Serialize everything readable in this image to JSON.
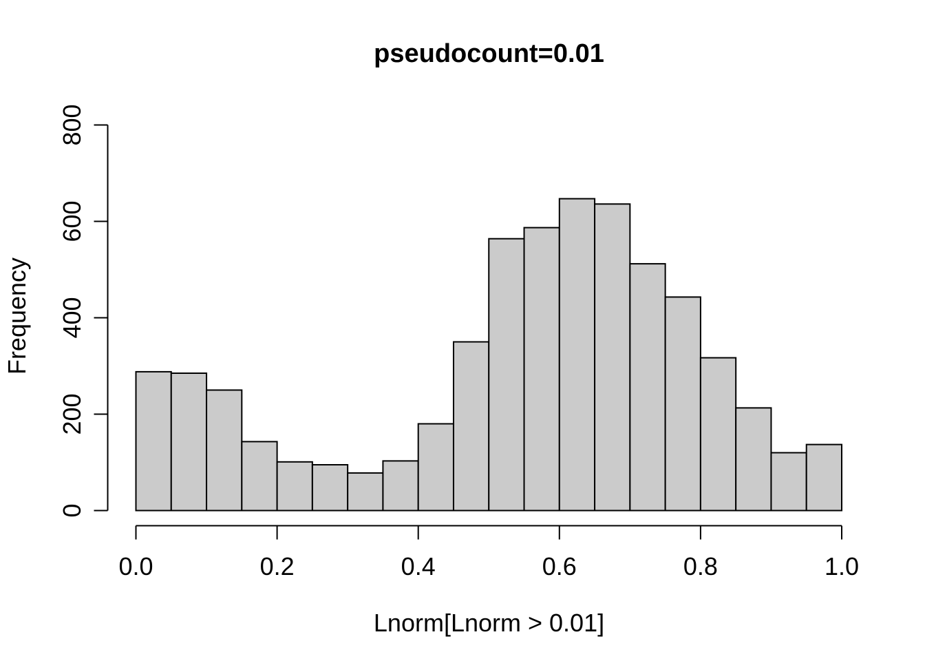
{
  "chart_data": {
    "type": "bar",
    "subtype": "histogram",
    "title": "pseudocount=0.01",
    "xlabel": "Lnorm[Lnorm > 0.01]",
    "ylabel": "Frequency",
    "bin_edges": [
      0.0,
      0.05,
      0.1,
      0.15,
      0.2,
      0.25,
      0.3,
      0.35,
      0.4,
      0.45,
      0.5,
      0.55,
      0.6,
      0.65,
      0.7,
      0.75,
      0.8,
      0.85,
      0.9,
      0.95,
      1.0
    ],
    "counts": [
      288,
      285,
      250,
      143,
      101,
      95,
      78,
      103,
      180,
      350,
      564,
      587,
      647,
      636,
      512,
      443,
      317,
      213,
      120,
      137
    ],
    "xlim": [
      0.0,
      1.0
    ],
    "ylim": [
      0,
      800
    ],
    "x_tick_values": [
      0.0,
      0.2,
      0.4,
      0.6,
      0.8,
      1.0
    ],
    "x_tick_labels": [
      "0.0",
      "0.2",
      "0.4",
      "0.6",
      "0.8",
      "1.0"
    ],
    "y_tick_values": [
      0,
      200,
      400,
      600,
      800
    ],
    "y_tick_labels": [
      "0",
      "200",
      "400",
      "600",
      "800"
    ],
    "grid": false,
    "legend": false,
    "colors": {
      "bar_fill": "#cbcbcb",
      "bar_stroke": "#000000",
      "axis": "#000000",
      "text": "#000000",
      "background": "#ffffff"
    }
  }
}
